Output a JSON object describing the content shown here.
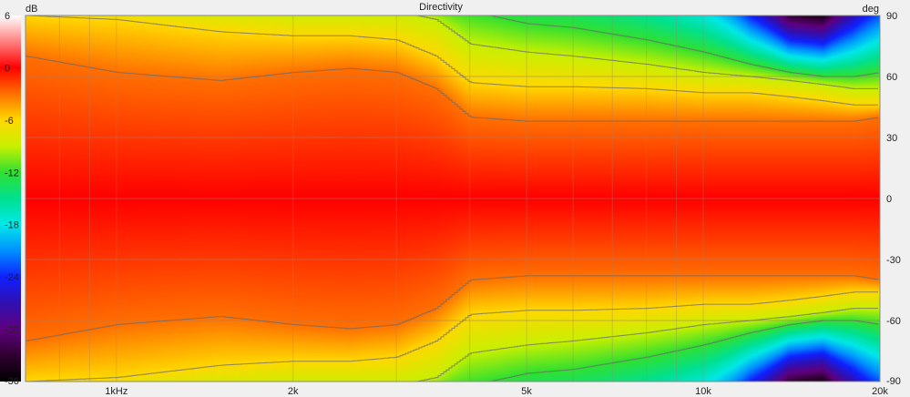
{
  "chart_data": {
    "type": "heatmap",
    "title": "Directivity",
    "colorbar_unit": "dB",
    "y_unit": "deg",
    "colorbar_ticks": [
      6,
      0,
      -6,
      -12,
      -18,
      -24,
      -30,
      -36
    ],
    "colorbar_range": [
      -36,
      6
    ],
    "y_ticks": [
      90,
      60,
      30,
      0,
      -30,
      -60,
      -90
    ],
    "y_range": [
      -90,
      90
    ],
    "x_scale": "log",
    "x_range": [
      700,
      20000
    ],
    "x_ticks": [
      {
        "value": 1000,
        "label": "1kHz"
      },
      {
        "value": 2000,
        "label": "2k"
      },
      {
        "value": 5000,
        "label": "5k"
      },
      {
        "value": 10000,
        "label": "10k"
      },
      {
        "value": 20000,
        "label": "20k"
      }
    ],
    "grid": true,
    "colormap": [
      {
        "db": 6,
        "color": "#ffffff"
      },
      {
        "db": 3,
        "color": "#ff8080"
      },
      {
        "db": 0,
        "color": "#ff0000"
      },
      {
        "db": -3,
        "color": "#ff7000"
      },
      {
        "db": -6,
        "color": "#ffd800"
      },
      {
        "db": -9,
        "color": "#c8f000"
      },
      {
        "db": -12,
        "color": "#30e030"
      },
      {
        "db": -15,
        "color": "#00e090"
      },
      {
        "db": -18,
        "color": "#00e8e8"
      },
      {
        "db": -21,
        "color": "#0090ff"
      },
      {
        "db": -24,
        "color": "#1020ff"
      },
      {
        "db": -27,
        "color": "#3010b0"
      },
      {
        "db": -30,
        "color": "#600080"
      },
      {
        "db": -33,
        "color": "#300030"
      },
      {
        "db": -36,
        "color": "#000000"
      }
    ],
    "contour_levels_db": [
      -3,
      -6,
      -9,
      -12
    ],
    "beamwidth_half_angle_deg": {
      "freqs": [
        700,
        1000,
        1500,
        2000,
        2500,
        3000,
        3500,
        4000,
        5000,
        6000,
        8000,
        10000,
        12000,
        14000,
        16000,
        18000,
        20000
      ],
      "minus3dB": [
        70,
        62,
        58,
        62,
        64,
        62,
        54,
        40,
        38,
        38,
        38,
        38,
        38,
        38,
        38,
        38,
        40
      ],
      "minus6dB": [
        90,
        88,
        82,
        80,
        80,
        78,
        70,
        57,
        55,
        55,
        54,
        52,
        52,
        50,
        48,
        46,
        46
      ],
      "minus9dB": [
        95,
        95,
        94,
        92,
        92,
        92,
        88,
        76,
        72,
        70,
        66,
        62,
        60,
        58,
        56,
        54,
        54
      ],
      "minus12dB": [
        100,
        100,
        100,
        98,
        98,
        98,
        96,
        92,
        86,
        84,
        78,
        72,
        66,
        62,
        60,
        60,
        62
      ]
    }
  }
}
